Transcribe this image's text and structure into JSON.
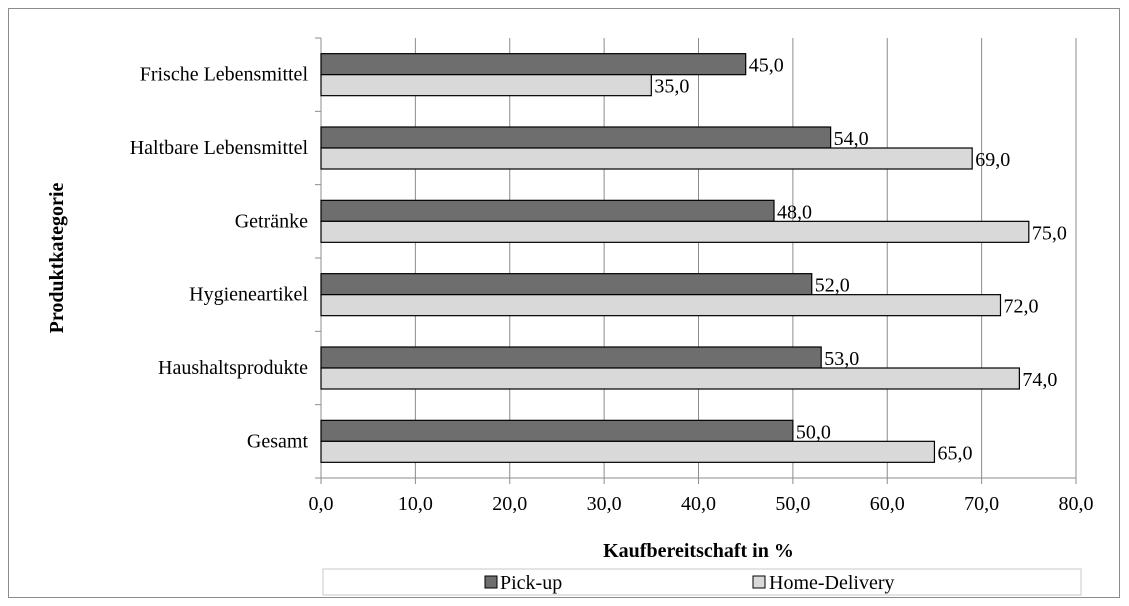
{
  "chart_data": {
    "type": "bar",
    "orientation": "horizontal",
    "categories": [
      "Frische Lebensmittel",
      "Haltbare Lebensmittel",
      "Getränke",
      "Hygieneartikel",
      "Haushaltsprodukte",
      "Gesamt"
    ],
    "series": [
      {
        "name": "Pick-up",
        "color": "#6e6e6e",
        "values": [
          45.0,
          54.0,
          48.0,
          52.0,
          53.0,
          50.0
        ],
        "labels": [
          "45,0",
          "54,0",
          "48,0",
          "52,0",
          "53,0",
          "50,0"
        ]
      },
      {
        "name": "Home-Delivery",
        "color": "#d9d9d9",
        "values": [
          35.0,
          69.0,
          75.0,
          72.0,
          74.0,
          65.0
        ],
        "labels": [
          "35,0",
          "69,0",
          "75,0",
          "72,0",
          "74,0",
          "65,0"
        ]
      }
    ],
    "xlabel": "Kaufbereitschaft in %",
    "ylabel": "Produktkategorie",
    "xlim": [
      0,
      80
    ],
    "xticks": [
      0,
      10,
      20,
      30,
      40,
      50,
      60,
      70,
      80
    ],
    "xtick_labels": [
      "0,0",
      "10,0",
      "20,0",
      "30,0",
      "40,0",
      "50,0",
      "60,0",
      "70,0",
      "80,0"
    ],
    "grid": "vertical",
    "legend_position": "bottom"
  }
}
